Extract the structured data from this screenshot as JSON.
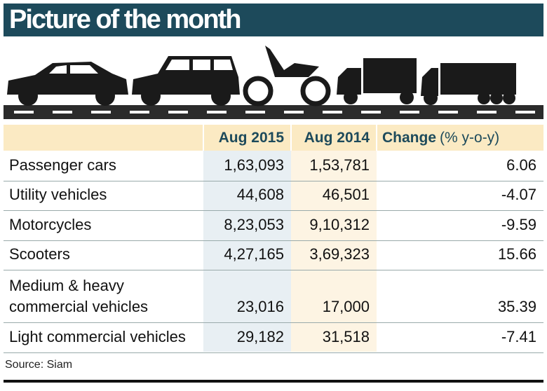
{
  "header": {
    "title": "Picture of the month"
  },
  "table": {
    "columns": [
      "Aug 2015",
      "Aug 2014"
    ],
    "change_header": "Change",
    "change_unit": "(% y-o-y)",
    "rows": [
      [
        "Passenger cars",
        "1,63,093",
        "1,53,781",
        "6.06"
      ],
      [
        "Utility vehicles",
        "44,608",
        "46,501",
        "-4.07"
      ],
      [
        "Motorcycles",
        "8,23,053",
        "9,10,312",
        "-9.59"
      ],
      [
        "Scooters",
        "4,27,165",
        "3,69,323",
        "15.66"
      ],
      [
        "Medium & heavy\ncommercial vehicles",
        "23,016",
        "17,000",
        "35.39"
      ],
      [
        "Light commercial vehicles",
        "29,182",
        "31,518",
        "-7.41"
      ]
    ]
  },
  "source": "Source: Siam"
}
